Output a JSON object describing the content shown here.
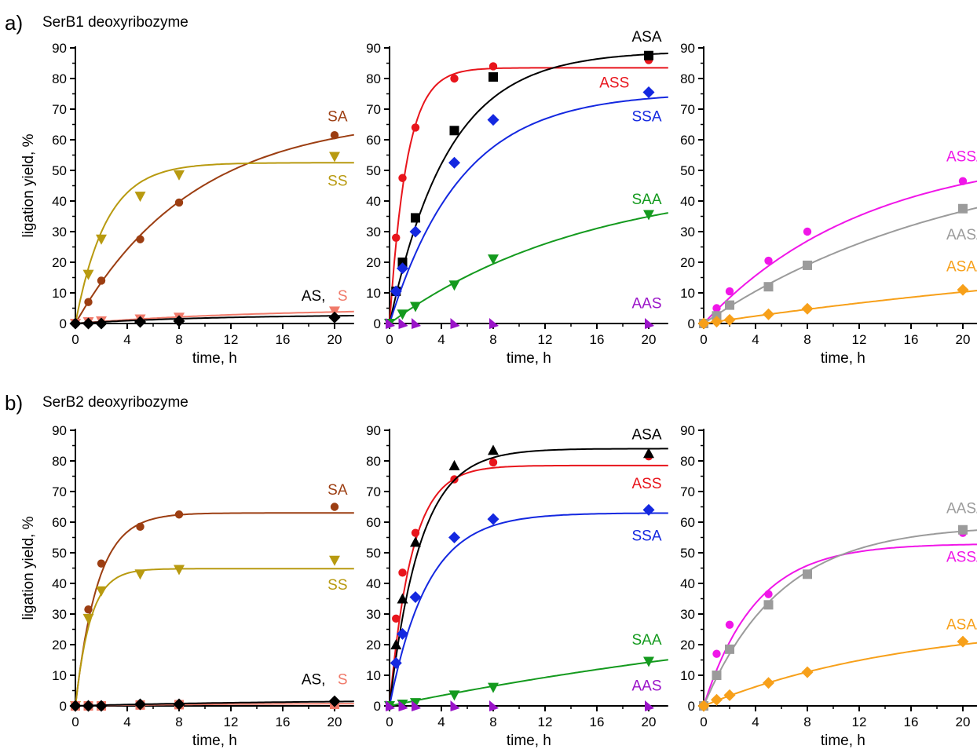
{
  "panels": [
    {
      "label": "a)",
      "title": "SerB1 deoxyribozyme"
    },
    {
      "label": "b)",
      "title": "SerB2 deoxyribozyme"
    }
  ],
  "chart_data": [
    {
      "type": "scatter",
      "panel": "a",
      "column": 1,
      "ylabel": "ligation yield, %",
      "xlabel": "time, h",
      "xlim": [
        0,
        21.5
      ],
      "ylim": [
        0,
        90
      ],
      "xticks": [
        0,
        4,
        8,
        12,
        16,
        20
      ],
      "yticks": [
        0,
        10,
        20,
        30,
        40,
        50,
        60,
        70,
        80,
        90
      ],
      "series": [
        {
          "name": "SA",
          "color": "#9c3e12",
          "marker": "circle",
          "x": [
            0,
            1,
            2,
            5,
            8,
            20
          ],
          "y": [
            0,
            7,
            14,
            27.5,
            39.5,
            61.5
          ],
          "fit": {
            "A": 68,
            "k": 0.11
          }
        },
        {
          "name": "SS",
          "color": "#b89a10",
          "marker": "triangle-down",
          "x": [
            0,
            1,
            2,
            5,
            8,
            20
          ],
          "y": [
            0,
            16,
            27.5,
            41.5,
            48.5,
            54.5
          ],
          "fit": {
            "A": 52.5,
            "k": 0.42
          }
        },
        {
          "name": "S",
          "color": "#f07a6a",
          "marker": "triangle-down",
          "x": [
            0,
            1,
            2,
            5,
            8,
            20
          ],
          "y": [
            0,
            0.5,
            0.8,
            1.4,
            2,
            4
          ],
          "fit": {
            "A": 5,
            "k": 0.07
          }
        },
        {
          "name": "AS",
          "color": "#000000",
          "marker": "diamond",
          "x": [
            0,
            1,
            2,
            5,
            8,
            20
          ],
          "y": [
            0,
            0,
            0,
            0.5,
            0.8,
            2
          ],
          "fit": {
            "A": 3,
            "k": 0.09
          }
        }
      ],
      "labels": [
        {
          "text": "SA",
          "color": "#9c3e12",
          "x": 21,
          "y": 66
        },
        {
          "text": "SS",
          "color": "#b89a10",
          "x": 21,
          "y": 45
        },
        {
          "text": "AS,",
          "color": "#000000",
          "x": 19.3,
          "y": 7.5
        },
        {
          "text": "S",
          "color": "#f07a6a",
          "x": 21,
          "y": 7.5
        }
      ]
    },
    {
      "type": "scatter",
      "panel": "a",
      "column": 2,
      "xlabel": "time, h",
      "xlim": [
        0,
        21.5
      ],
      "ylim": [
        0,
        90
      ],
      "xticks": [
        0,
        4,
        8,
        12,
        16,
        20
      ],
      "yticks": [
        0,
        10,
        20,
        30,
        40,
        50,
        60,
        70,
        80,
        90
      ],
      "series": [
        {
          "name": "ASS",
          "color": "#e8151c",
          "marker": "circle",
          "x": [
            0.5,
            1,
            2,
            5,
            8,
            20
          ],
          "y": [
            28,
            47.5,
            64,
            80,
            84,
            86
          ],
          "fit": {
            "A": 83.5,
            "k": 0.75
          }
        },
        {
          "name": "ASA",
          "color": "#000000",
          "marker": "square",
          "x": [
            0.5,
            1,
            2,
            5,
            8,
            20
          ],
          "y": [
            10.5,
            20,
            34.5,
            63,
            80.5,
            87.5
          ],
          "fit": {
            "A": 89,
            "k": 0.22
          }
        },
        {
          "name": "SSA",
          "color": "#1428e0",
          "marker": "diamond",
          "x": [
            0.5,
            1,
            2,
            5,
            8,
            20
          ],
          "y": [
            10.5,
            18,
            30,
            52.5,
            66.5,
            75.5
          ],
          "fit": {
            "A": 75.5,
            "k": 0.18
          }
        },
        {
          "name": "SAA",
          "color": "#149a1e",
          "marker": "triangle-down",
          "x": [
            0,
            1,
            2,
            5,
            8,
            20
          ],
          "y": [
            0,
            3,
            5.5,
            12.5,
            21,
            35.5
          ],
          "fit": {
            "A": 48,
            "k": 0.065
          }
        },
        {
          "name": "AAS",
          "color": "#9a14c8",
          "marker": "triangle-right",
          "x": [
            0,
            1,
            2,
            5,
            8,
            20
          ],
          "y": [
            0,
            0,
            0,
            0,
            0,
            0
          ],
          "fit": null
        }
      ],
      "labels": [
        {
          "text": "ASA",
          "color": "#000000",
          "x": 21,
          "y": 92
        },
        {
          "text": "ASS",
          "color": "#e8151c",
          "x": 18.5,
          "y": 77
        },
        {
          "text": "SSA",
          "color": "#1428e0",
          "x": 21,
          "y": 66
        },
        {
          "text": "SAA",
          "color": "#149a1e",
          "x": 21,
          "y": 39
        },
        {
          "text": "AAS",
          "color": "#9a14c8",
          "x": 21,
          "y": 5
        }
      ]
    },
    {
      "type": "scatter",
      "panel": "a",
      "column": 3,
      "xlabel": "time, h",
      "xlim": [
        0,
        21.5
      ],
      "ylim": [
        0,
        90
      ],
      "xticks": [
        0,
        4,
        8,
        12,
        16,
        20
      ],
      "yticks": [
        0,
        10,
        20,
        30,
        40,
        50,
        60,
        70,
        80,
        90
      ],
      "series": [
        {
          "name": "ASSA",
          "color": "#f016e8",
          "marker": "circle",
          "x": [
            0,
            1,
            2,
            5,
            8,
            20
          ],
          "y": [
            0,
            5,
            10.5,
            20.5,
            30,
            46.5
          ],
          "fit": {
            "A": 57,
            "k": 0.08
          }
        },
        {
          "name": "AASA",
          "color": "#9b9b9b",
          "marker": "square",
          "x": [
            0,
            1,
            2,
            5,
            8,
            20
          ],
          "y": [
            0,
            2.5,
            6,
            12,
            19,
            37.5
          ],
          "fit": {
            "A": 58,
            "k": 0.05
          }
        },
        {
          "name": "ASAA",
          "color": "#f7a01a",
          "marker": "diamond",
          "x": [
            0,
            1,
            2,
            5,
            8,
            20
          ],
          "y": [
            0,
            0.6,
            1.2,
            3,
            4.8,
            11
          ],
          "fit": {
            "A": 30,
            "k": 0.021
          }
        }
      ],
      "labels": [
        {
          "text": "ASSA",
          "color": "#f016e8",
          "x": 21.8,
          "y": 53
        },
        {
          "text": "AASA",
          "color": "#9b9b9b",
          "x": 21.8,
          "y": 27.5
        },
        {
          "text": "ASAA",
          "color": "#f7a01a",
          "x": 21.8,
          "y": 17
        }
      ]
    },
    {
      "type": "scatter",
      "panel": "b",
      "column": 1,
      "ylabel": "ligation yield, %",
      "xlabel": "time, h",
      "xlim": [
        0,
        21.5
      ],
      "ylim": [
        0,
        90
      ],
      "xticks": [
        0,
        4,
        8,
        12,
        16,
        20
      ],
      "yticks": [
        0,
        10,
        20,
        30,
        40,
        50,
        60,
        70,
        80,
        90
      ],
      "series": [
        {
          "name": "SA",
          "color": "#9c3e12",
          "marker": "circle",
          "x": [
            0,
            1,
            2,
            5,
            8,
            20
          ],
          "y": [
            0,
            31.5,
            46.5,
            58.5,
            62.5,
            65
          ],
          "fit": {
            "A": 63,
            "k": 0.58
          }
        },
        {
          "name": "SS",
          "color": "#b89a10",
          "marker": "triangle-down",
          "x": [
            0,
            1,
            2,
            5,
            8,
            20
          ],
          "y": [
            0,
            28.5,
            37.5,
            43,
            44.5,
            47.5
          ],
          "fit": {
            "A": 44.8,
            "k": 0.85
          }
        },
        {
          "name": "S",
          "color": "#f07a6a",
          "marker": "square",
          "x": [
            0,
            1,
            2,
            5,
            8,
            20
          ],
          "y": [
            0,
            0,
            0,
            0.3,
            0.4,
            0.5
          ],
          "fit": {
            "A": 0.8,
            "k": 0.1
          }
        },
        {
          "name": "AS",
          "color": "#000000",
          "marker": "diamond",
          "x": [
            0,
            1,
            2,
            5,
            8,
            20
          ],
          "y": [
            0,
            0,
            0,
            0.5,
            0.5,
            1.5
          ],
          "fit": {
            "A": 2,
            "k": 0.06
          }
        }
      ],
      "labels": [
        {
          "text": "SA",
          "color": "#9c3e12",
          "x": 21,
          "y": 69
        },
        {
          "text": "SS",
          "color": "#b89a10",
          "x": 21,
          "y": 38
        },
        {
          "text": "AS,",
          "color": "#000000",
          "x": 19.3,
          "y": 7
        },
        {
          "text": "S",
          "color": "#f07a6a",
          "x": 21,
          "y": 7
        }
      ]
    },
    {
      "type": "scatter",
      "panel": "b",
      "column": 2,
      "xlabel": "time, h",
      "xlim": [
        0,
        21.5
      ],
      "ylim": [
        0,
        90
      ],
      "xticks": [
        0,
        4,
        8,
        12,
        16,
        20
      ],
      "yticks": [
        0,
        10,
        20,
        30,
        40,
        50,
        60,
        70,
        80,
        90
      ],
      "series": [
        {
          "name": "ASS",
          "color": "#e8151c",
          "marker": "circle",
          "x": [
            0.5,
            1,
            2,
            5,
            8,
            20
          ],
          "y": [
            28.5,
            43.5,
            56.5,
            74,
            79.5,
            81.5
          ],
          "fit": {
            "A": 78.5,
            "k": 0.58
          }
        },
        {
          "name": "ASA",
          "color": "#000000",
          "marker": "triangle-up",
          "x": [
            0.5,
            1,
            2,
            5,
            8,
            20
          ],
          "y": [
            20,
            35,
            53.5,
            78.5,
            83.5,
            82.5
          ],
          "fit": {
            "A": 84,
            "k": 0.42
          }
        },
        {
          "name": "SSA",
          "color": "#1428e0",
          "marker": "diamond",
          "x": [
            0.5,
            1,
            2,
            5,
            8,
            20
          ],
          "y": [
            14,
            23.5,
            35.5,
            55,
            61,
            64
          ],
          "fit": {
            "A": 63,
            "k": 0.34
          }
        },
        {
          "name": "SAA",
          "color": "#149a1e",
          "marker": "triangle-down",
          "x": [
            0,
            1,
            2,
            5,
            8,
            20
          ],
          "y": [
            0,
            0.5,
            1,
            3.5,
            6,
            14.5
          ],
          "fit": {
            "A": 40,
            "k": 0.022
          }
        },
        {
          "name": "AAS",
          "color": "#9a14c8",
          "marker": "triangle-right",
          "x": [
            0,
            1,
            2,
            5,
            8,
            20
          ],
          "y": [
            0,
            0,
            0,
            0,
            0,
            0
          ],
          "fit": null
        }
      ],
      "labels": [
        {
          "text": "ASA",
          "color": "#000000",
          "x": 21,
          "y": 87
        },
        {
          "text": "ASS",
          "color": "#e8151c",
          "x": 21,
          "y": 71
        },
        {
          "text": "SSA",
          "color": "#1428e0",
          "x": 21,
          "y": 54
        },
        {
          "text": "SAA",
          "color": "#149a1e",
          "x": 21,
          "y": 20
        },
        {
          "text": "AAS",
          "color": "#9a14c8",
          "x": 21,
          "y": 5
        }
      ]
    },
    {
      "type": "scatter",
      "panel": "b",
      "column": 3,
      "xlabel": "time, h",
      "xlim": [
        0,
        21.5
      ],
      "ylim": [
        0,
        90
      ],
      "xticks": [
        0,
        4,
        8,
        12,
        16,
        20
      ],
      "yticks": [
        0,
        10,
        20,
        30,
        40,
        50,
        60,
        70,
        80,
        90
      ],
      "series": [
        {
          "name": "ASSA",
          "color": "#f016e8",
          "marker": "circle",
          "x": [
            0,
            1,
            2,
            5,
            8,
            20
          ],
          "y": [
            0,
            17,
            26.5,
            36.5,
            43,
            56.5
          ],
          "fit": {
            "A": 53,
            "k": 0.25
          }
        },
        {
          "name": "AASA",
          "color": "#9b9b9b",
          "marker": "square",
          "x": [
            0,
            1,
            2,
            5,
            8,
            20
          ],
          "y": [
            0,
            10,
            18.5,
            33,
            43,
            57.5
          ],
          "fit": {
            "A": 59,
            "k": 0.17
          }
        },
        {
          "name": "ASAA",
          "color": "#f7a01a",
          "marker": "diamond",
          "x": [
            0,
            1,
            2,
            5,
            8,
            20
          ],
          "y": [
            0,
            2,
            3.5,
            7.5,
            11,
            21
          ],
          "fit": {
            "A": 28,
            "k": 0.063
          }
        }
      ],
      "labels": [
        {
          "text": "AASA",
          "color": "#9b9b9b",
          "x": 21.8,
          "y": 63
        },
        {
          "text": "ASSA",
          "color": "#f016e8",
          "x": 21.8,
          "y": 47
        },
        {
          "text": "ASAA",
          "color": "#f7a01a",
          "x": 21.8,
          "y": 25
        }
      ]
    }
  ]
}
